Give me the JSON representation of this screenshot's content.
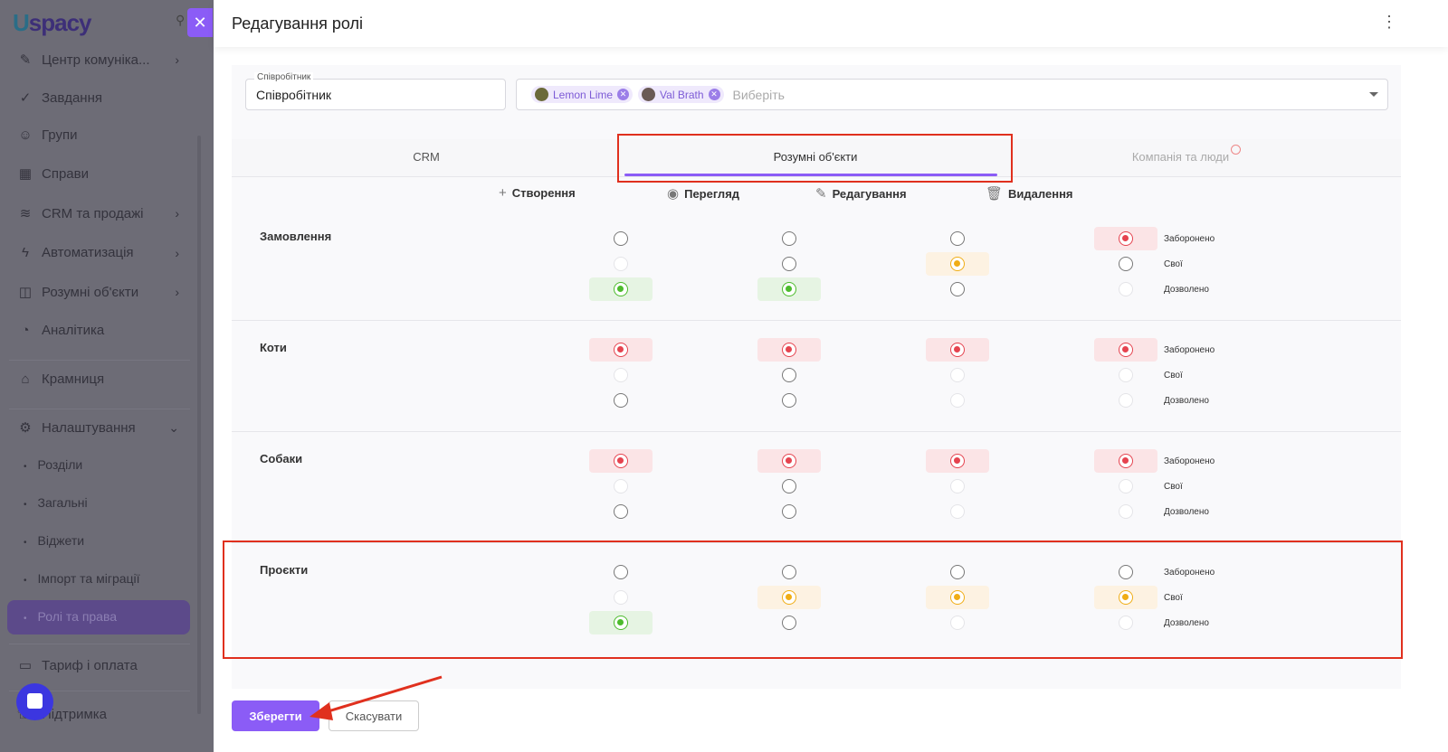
{
  "sidebar": {
    "logo": "Uspacy",
    "items": [
      {
        "label": "Центр комуніка...",
        "icon": "chat-center-icon",
        "chev": "›"
      },
      {
        "label": "Завдання",
        "icon": "check-circle-icon"
      },
      {
        "label": "Групи",
        "icon": "users-icon"
      },
      {
        "label": "Справи",
        "icon": "calendar-icon"
      },
      {
        "label": "CRM та продажі",
        "icon": "database-icon",
        "chev": "›"
      },
      {
        "label": "Автоматизація",
        "icon": "lightning-icon",
        "chev": "›"
      },
      {
        "label": "Розумні об'єкти",
        "icon": "smart-object-icon",
        "chev": "›"
      },
      {
        "label": "Аналітика",
        "icon": "chart-icon"
      },
      {
        "label": "Крамниця",
        "icon": "store-icon"
      },
      {
        "label": "Налаштування",
        "icon": "gear-icon",
        "chev": "⌄"
      }
    ],
    "sub": [
      "Розділи",
      "Загальні",
      "Віджети",
      "Імпорт та міграції",
      "Ролі та права"
    ],
    "bottom": [
      {
        "label": "Тариф і оплата",
        "icon": "wallet-icon"
      },
      {
        "label": "Підтримка",
        "icon": "support-icon"
      }
    ]
  },
  "modal": {
    "title": "Редагування ролі",
    "role_label": "Співробітник",
    "role_value": "Співробітник",
    "chips": [
      "Lemon Lime",
      "Val Brath"
    ],
    "placeholder": "Виберіть",
    "tabs": [
      "CRM",
      "Розумні об'єкти",
      "Компанія та люди"
    ],
    "active_tab": 1,
    "columns": [
      {
        "label": "Створення",
        "icon": "plus-icon"
      },
      {
        "label": "Перегляд",
        "icon": "eye-icon"
      },
      {
        "label": "Редагування",
        "icon": "pencil-icon"
      },
      {
        "label": "Видалення",
        "icon": "trash-icon"
      }
    ],
    "levels": [
      "Заборонено",
      "Свої",
      "Дозволено"
    ],
    "rows": [
      {
        "name": "Замовлення",
        "cells": [
          {
            "selected": 2,
            "disabled": [
              1
            ]
          },
          {
            "selected": 2,
            "disabled": []
          },
          {
            "selected": 1,
            "disabled": []
          },
          {
            "selected": 0,
            "disabled": [
              2
            ]
          }
        ]
      },
      {
        "name": "Коти",
        "cells": [
          {
            "selected": 0,
            "disabled": [
              1
            ]
          },
          {
            "selected": 0,
            "disabled": []
          },
          {
            "selected": 0,
            "disabled": [
              1,
              2
            ]
          },
          {
            "selected": 0,
            "disabled": [
              1,
              2
            ]
          }
        ]
      },
      {
        "name": "Собаки",
        "cells": [
          {
            "selected": 0,
            "disabled": [
              1
            ]
          },
          {
            "selected": 0,
            "disabled": []
          },
          {
            "selected": 0,
            "disabled": [
              1,
              2
            ]
          },
          {
            "selected": 0,
            "disabled": [
              1,
              2
            ]
          }
        ]
      },
      {
        "name": "Проєкти",
        "cells": [
          {
            "selected": 2,
            "disabled": [
              1
            ]
          },
          {
            "selected": 1,
            "disabled": []
          },
          {
            "selected": 1,
            "disabled": [
              2
            ]
          },
          {
            "selected": 1,
            "disabled": [
              2
            ]
          }
        ]
      }
    ],
    "save": "Зберегти",
    "cancel": "Скасувати"
  },
  "colors": {
    "accent": "#8b5cf6",
    "forbidden": "#e5434f",
    "own": "#f0ad16",
    "allowed": "#4cbb2c",
    "annotation": "#e0301e"
  }
}
